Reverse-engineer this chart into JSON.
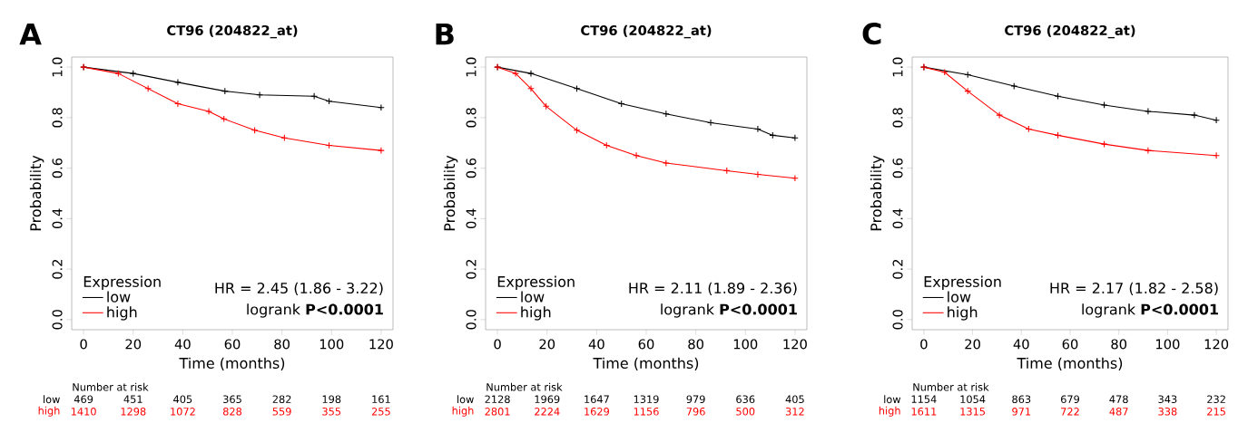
{
  "chart_data": [
    {
      "type": "line",
      "title": "CT96 (204822_at)",
      "xlabel": "Time (months)",
      "ylabel": "Probability",
      "legend_title": "Expression",
      "series": [
        {
          "name": "low",
          "color": "#000000",
          "x": [
            0,
            20,
            38,
            57,
            71,
            93,
            99,
            120
          ],
          "values": [
            1.0,
            0.975,
            0.94,
            0.905,
            0.89,
            0.885,
            0.865,
            0.84
          ]
        },
        {
          "name": "high",
          "color": "#ff0000",
          "x": [
            0,
            14,
            26,
            38,
            50.5,
            56.6,
            69,
            81,
            99,
            120
          ],
          "values": [
            1.0,
            0.975,
            0.915,
            0.855,
            0.825,
            0.795,
            0.75,
            0.72,
            0.69,
            0.67
          ]
        }
      ],
      "xlim": [
        -4.8,
        124.8
      ],
      "ylim": [
        -0.04,
        1.04
      ],
      "xticks": [
        0,
        20,
        40,
        60,
        80,
        100,
        120
      ],
      "yticks": [
        {
          "value": 0,
          "label": "0.0"
        },
        {
          "value": 0.2,
          "label": "0.2"
        },
        {
          "value": 0.4,
          "label": "0.4"
        },
        {
          "value": 0.6,
          "label": "0.6"
        },
        {
          "value": 0.8,
          "label": "0.8"
        },
        {
          "value": 1,
          "label": "1.0"
        }
      ],
      "legend": "bottom left",
      "marker": "cross",
      "annotations": [
        "A",
        "HR = 2.45 (1.86 - 3.22)",
        "logrank **P<0.0001**",
        "Number at risk",
        "low",
        "high",
        "469",
        "451",
        "405",
        "365",
        "282",
        "198",
        "161",
        "1410",
        "1298",
        "1072",
        "828",
        "559",
        "355",
        "255"
      ]
    },
    {
      "type": "line",
      "title": "CT96 (204822_at)",
      "xlabel": "Time (months)",
      "ylabel": "Probability",
      "legend_title": "Expression",
      "series": [
        {
          "name": "low",
          "color": "#000000",
          "x": [
            0,
            13.5,
            32,
            50,
            68,
            86,
            105,
            111,
            120
          ],
          "values": [
            1.0,
            0.975,
            0.915,
            0.855,
            0.815,
            0.78,
            0.755,
            0.73,
            0.72
          ]
        },
        {
          "name": "high",
          "color": "#ff0000",
          "x": [
            0,
            7.3,
            13.5,
            19.6,
            32,
            44,
            56,
            68,
            92.5,
            105,
            120
          ],
          "values": [
            1.0,
            0.975,
            0.915,
            0.845,
            0.75,
            0.69,
            0.65,
            0.62,
            0.59,
            0.575,
            0.56
          ]
        }
      ],
      "xlim": [
        -4.8,
        124.8
      ],
      "ylim": [
        -0.04,
        1.04
      ],
      "xticks": [
        0,
        20,
        40,
        60,
        80,
        100,
        120
      ],
      "yticks": [
        {
          "value": 0,
          "label": "0.0"
        },
        {
          "value": 0.2,
          "label": "0.2"
        },
        {
          "value": 0.4,
          "label": "0.4"
        },
        {
          "value": 0.6,
          "label": "0.6"
        },
        {
          "value": 0.8,
          "label": "0.8"
        },
        {
          "value": 1,
          "label": "1.0"
        }
      ],
      "legend": "bottom left",
      "marker": "cross",
      "annotations": [
        "B",
        "HR = 2.11 (1.89 - 2.36)",
        "logrank **P<0.0001**",
        "Number at risk",
        "low",
        "high",
        "2128",
        "1969",
        "1647",
        "1319",
        "979",
        "636",
        "405",
        "2801",
        "2224",
        "1629",
        "1156",
        "796",
        "500",
        "312"
      ]
    },
    {
      "type": "line",
      "title": "CT96 (204822_at)",
      "xlabel": "Time (months)",
      "ylabel": "Probability",
      "legend_title": "Expression",
      "series": [
        {
          "name": "low",
          "color": "#000000",
          "x": [
            0,
            18,
            37,
            55,
            74,
            92,
            111,
            120
          ],
          "values": [
            1.0,
            0.97,
            0.925,
            0.885,
            0.85,
            0.825,
            0.81,
            0.79
          ]
        },
        {
          "name": "high",
          "color": "#ff0000",
          "x": [
            0,
            8.5,
            18,
            31,
            43,
            55,
            74,
            92,
            120
          ],
          "values": [
            1.0,
            0.98,
            0.905,
            0.81,
            0.755,
            0.73,
            0.695,
            0.67,
            0.65
          ]
        }
      ],
      "xlim": [
        -4.8,
        124.8
      ],
      "ylim": [
        -0.04,
        1.04
      ],
      "xticks": [
        0,
        20,
        40,
        60,
        80,
        100,
        120
      ],
      "yticks": [
        {
          "value": 0,
          "label": "0.0"
        },
        {
          "value": 0.2,
          "label": "0.2"
        },
        {
          "value": 0.4,
          "label": "0.4"
        },
        {
          "value": 0.6,
          "label": "0.6"
        },
        {
          "value": 0.8,
          "label": "0.8"
        },
        {
          "value": 1,
          "label": "1.0"
        }
      ],
      "legend": "bottom left",
      "marker": "cross",
      "annotations": [
        "C",
        "HR = 2.17 (1.82 - 2.58)",
        "logrank **P<0.0001**",
        "Number at risk",
        "low",
        "high",
        "1154",
        "1054",
        "863",
        "679",
        "478",
        "343",
        "232",
        "1611",
        "1315",
        "971",
        "722",
        "487",
        "338",
        "215"
      ]
    }
  ]
}
